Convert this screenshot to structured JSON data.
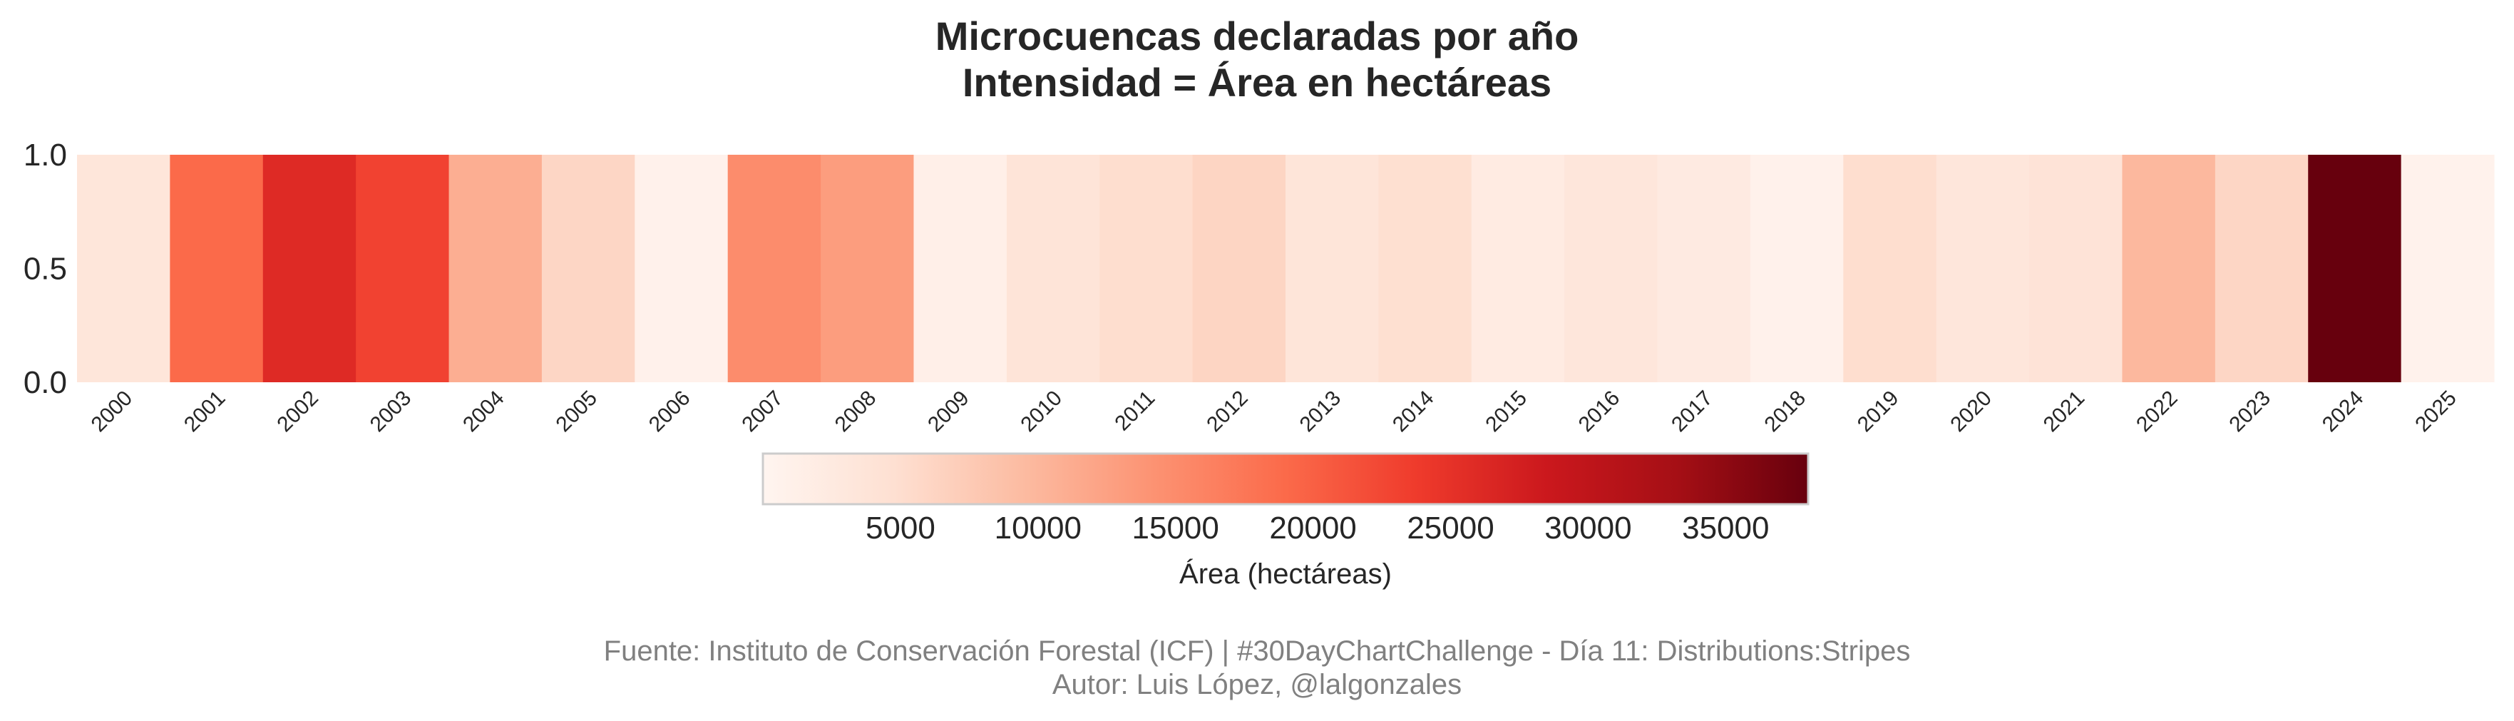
{
  "chart_data": {
    "type": "heatmap",
    "title": "Microcuencas declaradas por año",
    "subtitle": "Intensidad = Área en hectáreas",
    "categories": [
      "2000",
      "2001",
      "2002",
      "2003",
      "2004",
      "2005",
      "2006",
      "2007",
      "2008",
      "2009",
      "2010",
      "2011",
      "2012",
      "2013",
      "2014",
      "2015",
      "2016",
      "2017",
      "2018",
      "2019",
      "2020",
      "2021",
      "2022",
      "2023",
      "2024",
      "2025"
    ],
    "values": [
      3500,
      19000,
      26000,
      23000,
      11000,
      6000,
      800,
      15000,
      13000,
      1300,
      3800,
      5000,
      6200,
      3600,
      4800,
      2200,
      3300,
      2400,
      800,
      5000,
      3400,
      4000,
      9800,
      6000,
      38000,
      700
    ],
    "colormap": "Reds",
    "colormap_range": [
      0,
      38000
    ],
    "ylim": [
      0,
      1
    ],
    "yticks": [
      "0.0",
      "0.5",
      "1.0"
    ],
    "colorbar": {
      "ticks": [
        "5000",
        "10000",
        "15000",
        "20000",
        "25000",
        "30000",
        "35000"
      ],
      "tick_values": [
        5000,
        10000,
        15000,
        20000,
        25000,
        30000,
        35000
      ],
      "label": "Área (hectáreas)"
    },
    "grid": false,
    "legend": "colorbar-bottom"
  },
  "footer": {
    "source": "Fuente: Instituto de Conservación Forestal (ICF) | #30DayChartChallenge - Día 11: Distributions:Stripes",
    "author": "Autor: Luis López, @lalgonzales"
  }
}
